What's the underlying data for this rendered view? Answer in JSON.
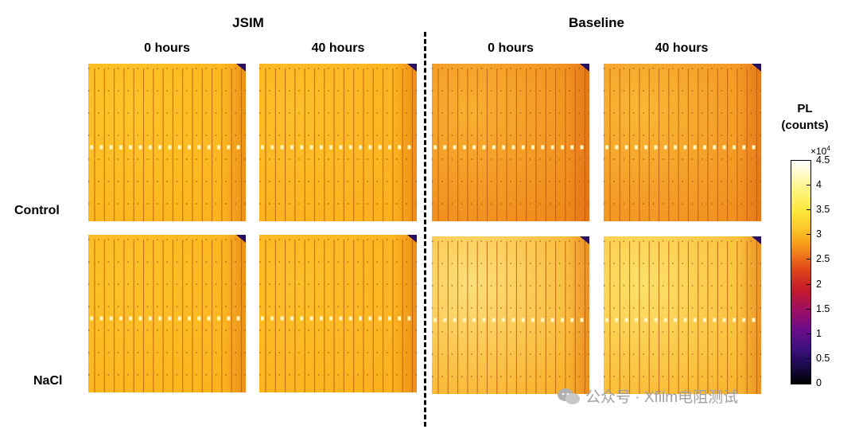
{
  "groups": {
    "jsim": "JSIM",
    "baseline": "Baseline"
  },
  "columns": [
    "0 hours",
    "40 hours",
    "0 hours",
    "40 hours"
  ],
  "rows": [
    "Control",
    "NaCl"
  ],
  "colorbar": {
    "title_line1": "PL",
    "title_line2": "(counts)",
    "exponent_base": "×10",
    "exponent_power": "4",
    "ticks": [
      "4.5",
      "4",
      "3.5",
      "3",
      "2.5",
      "2",
      "1.5",
      "1",
      "0.5",
      "0"
    ],
    "colormap": [
      "#000000",
      "#3b0f7a",
      "#9a0e6a",
      "#c41a2a",
      "#ef7a1a",
      "#fbc92a",
      "#fff48a",
      "#ffffff"
    ]
  },
  "panels": [
    {
      "name": "jsim-control-0h",
      "base": "#fbb41e",
      "tint": "#fcc52a"
    },
    {
      "name": "jsim-control-40h",
      "base": "#fbb11c",
      "tint": "#fcc02a"
    },
    {
      "name": "baseline-control-0h",
      "base": "#f08a1c",
      "tint": "#f8b030"
    },
    {
      "name": "baseline-control-40h",
      "base": "#f19020",
      "tint": "#f9b834"
    },
    {
      "name": "jsim-nacl-0h",
      "base": "#fbb41e",
      "tint": "#fcc22a"
    },
    {
      "name": "jsim-nacl-40h",
      "base": "#fbb21d",
      "tint": "#fcc02a"
    },
    {
      "name": "baseline-nacl-0h",
      "base": "#f9b22c",
      "tint": "#fde07a"
    },
    {
      "name": "baseline-nacl-40h",
      "base": "#f9b730",
      "tint": "#fde26a"
    }
  ],
  "watermark": "公众号 · Xfilm电阻测试"
}
